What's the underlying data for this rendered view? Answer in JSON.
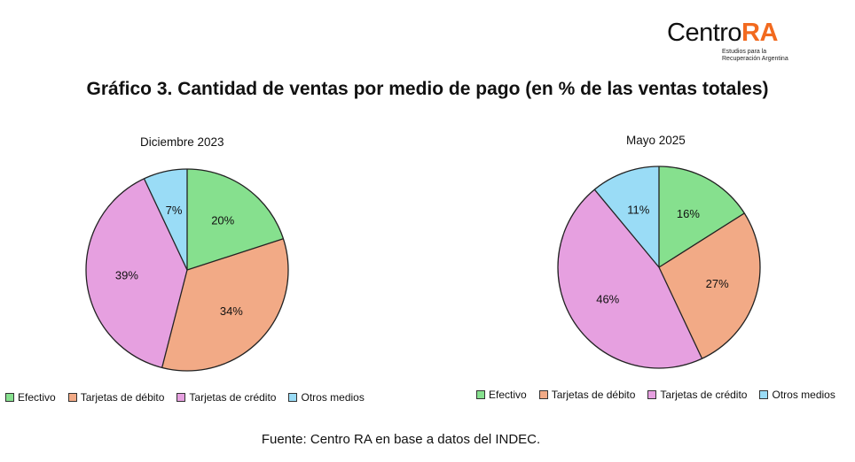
{
  "logo": {
    "brand_main": "Centro",
    "brand_accent": "RA",
    "subtitle_line1": "Estudios para la",
    "subtitle_line2": "Recuperación Argentina"
  },
  "title": "Gráfico 3. Cantidad de ventas por medio de pago (en % de las ventas totales)",
  "colors": {
    "efectivo": "#86e08e",
    "debito": "#f2aa86",
    "credito": "#e6a0e0",
    "otros": "#9adcf6",
    "logo_accent": "#f26a1f"
  },
  "chart_data": [
    {
      "type": "pie",
      "title": "Diciembre 2023",
      "categories": [
        "Efectivo",
        "Tarjetas de débito",
        "Tarjetas de crédito",
        "Otros medios"
      ],
      "values": [
        20,
        34,
        39,
        7
      ],
      "labels": [
        "20%",
        "34%",
        "39%",
        "7%"
      ],
      "legend": "bottom"
    },
    {
      "type": "pie",
      "title": "Mayo 2025",
      "categories": [
        "Efectivo",
        "Tarjetas de débito",
        "Tarjetas de crédito",
        "Otros medios"
      ],
      "values": [
        16,
        27,
        46,
        11
      ],
      "labels": [
        "16%",
        "27%",
        "46%",
        "11%"
      ],
      "legend": "bottom"
    }
  ],
  "source": "Fuente: Centro RA en base a datos del INDEC."
}
